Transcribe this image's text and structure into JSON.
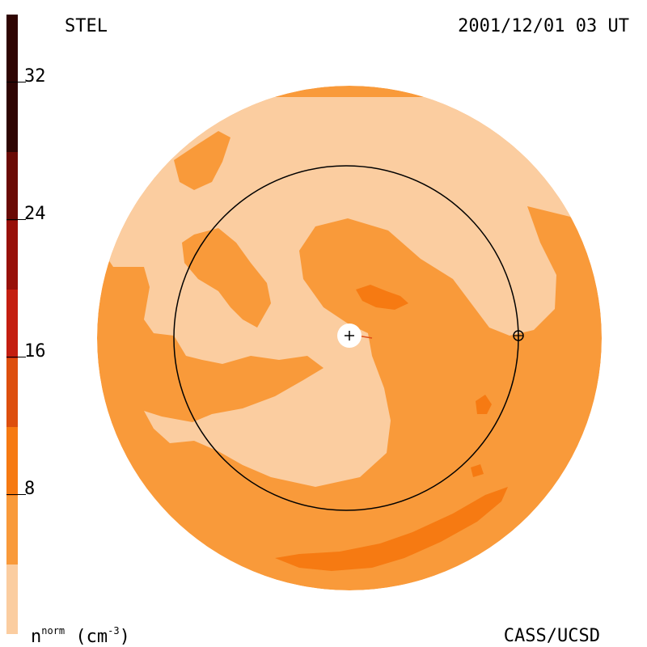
{
  "header": {
    "source": "STEL",
    "datetime": "2001/12/01 03 UT"
  },
  "footer": {
    "quantity": "n",
    "quantity_sup": "norm",
    "units": "(cm",
    "units_sup": "-3",
    "units_close": ")",
    "credit": "CASS/UCSD"
  },
  "colorbar": {
    "ticks": [
      "32",
      "24",
      "16",
      "8"
    ],
    "colors": [
      "#fbcda0",
      "#f99a3a",
      "#f67a12",
      "#dd4f0e",
      "#c41e10",
      "#981009",
      "#6a0a05",
      "#2f0503"
    ]
  },
  "map": {
    "observer_marker": "earth-crosshair-icon",
    "sun_marker": "sun-crosshair-icon"
  }
}
